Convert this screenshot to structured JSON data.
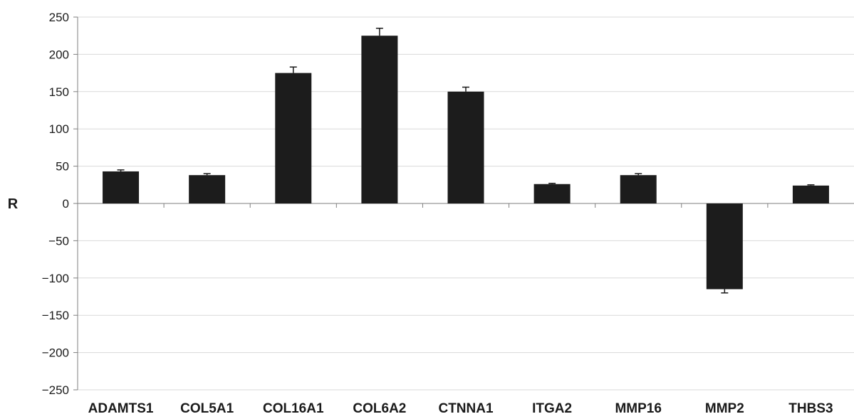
{
  "chart_data": {
    "type": "bar",
    "title": "",
    "xlabel": "",
    "ylabel": "R",
    "ylim": [
      -250,
      250
    ],
    "yticks": [
      250,
      200,
      150,
      100,
      50,
      0,
      -50,
      -100,
      -150,
      -200,
      -250
    ],
    "ytick_labels": [
      "250",
      "200",
      "150",
      "100",
      "50",
      "0",
      "−50",
      "−100",
      "−150",
      "−200",
      "−250"
    ],
    "grid": true,
    "bar_color": "#1c1c1c",
    "grid_color": "#d9d9d9",
    "categories": [
      "ADAMTS1",
      "COL5A1",
      "COL16A1",
      "COL6A2",
      "CTNNA1",
      "ITGA2",
      "MMP16",
      "MMP2",
      "THBS3"
    ],
    "values": [
      43,
      38,
      175,
      225,
      150,
      26,
      38,
      -115,
      24
    ],
    "errors": [
      2,
      2,
      8,
      10,
      6,
      1,
      2,
      5,
      1
    ]
  }
}
